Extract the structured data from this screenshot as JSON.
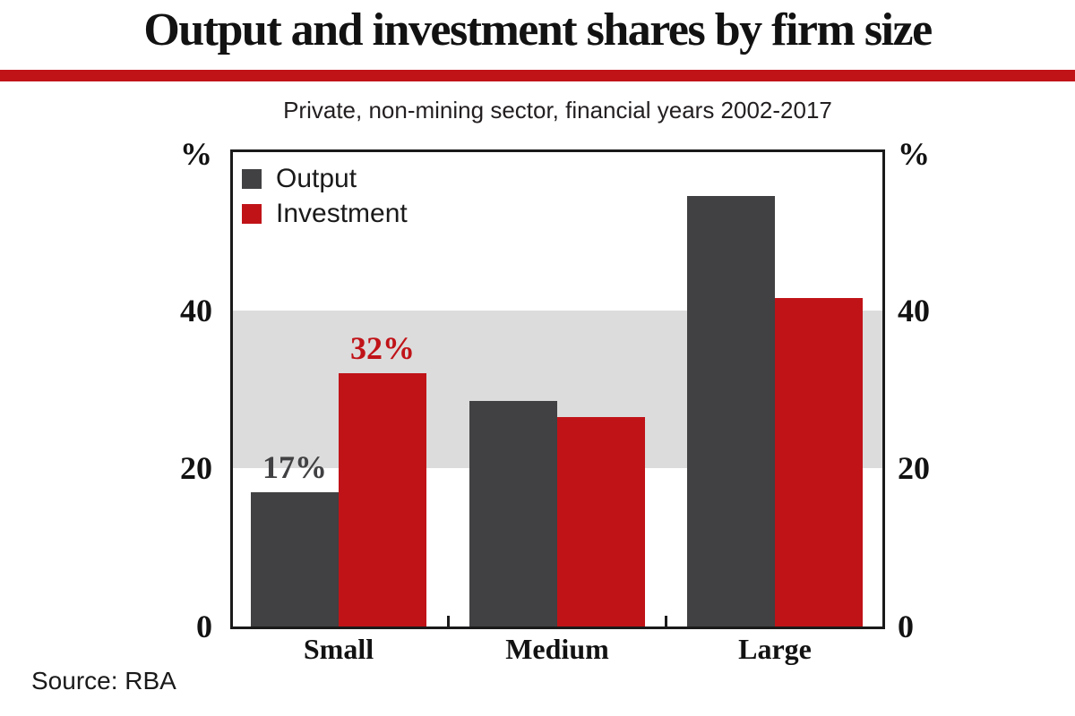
{
  "header": {
    "title": "Output and investment shares by firm size"
  },
  "footer": {
    "source": "Source: RBA"
  },
  "colors": {
    "accent_red": "#c01318",
    "bar_dark_gray": "#414042",
    "band_gray": "#dcdcdc",
    "axis_black": "#1a1a1a"
  },
  "chart_data": {
    "type": "bar",
    "title": "Output and investment shares by firm size",
    "subtitle": "Private, non-mining sector, financial years 2002-2017",
    "categories": [
      "Small",
      "Medium",
      "Large"
    ],
    "series": [
      {
        "name": "Output",
        "color": "#414042",
        "values": [
          17,
          28.5,
          54.5
        ]
      },
      {
        "name": "Investment",
        "color": "#c01318",
        "values": [
          32,
          26.5,
          41.5
        ]
      }
    ],
    "annotations": [
      {
        "category": "Small",
        "series": "Output",
        "text": "17%"
      },
      {
        "category": "Small",
        "series": "Investment",
        "text": "32%"
      }
    ],
    "xlabel": "",
    "ylabel": "%",
    "ylim": [
      0,
      60
    ],
    "yticks": [
      0,
      20,
      40
    ],
    "y_axis_sides": "both",
    "grid": "shaded band between 20 and 40",
    "band": {
      "from": 20,
      "to": 40,
      "color": "#dcdcdc"
    },
    "legend_position": "top-left-inside"
  }
}
